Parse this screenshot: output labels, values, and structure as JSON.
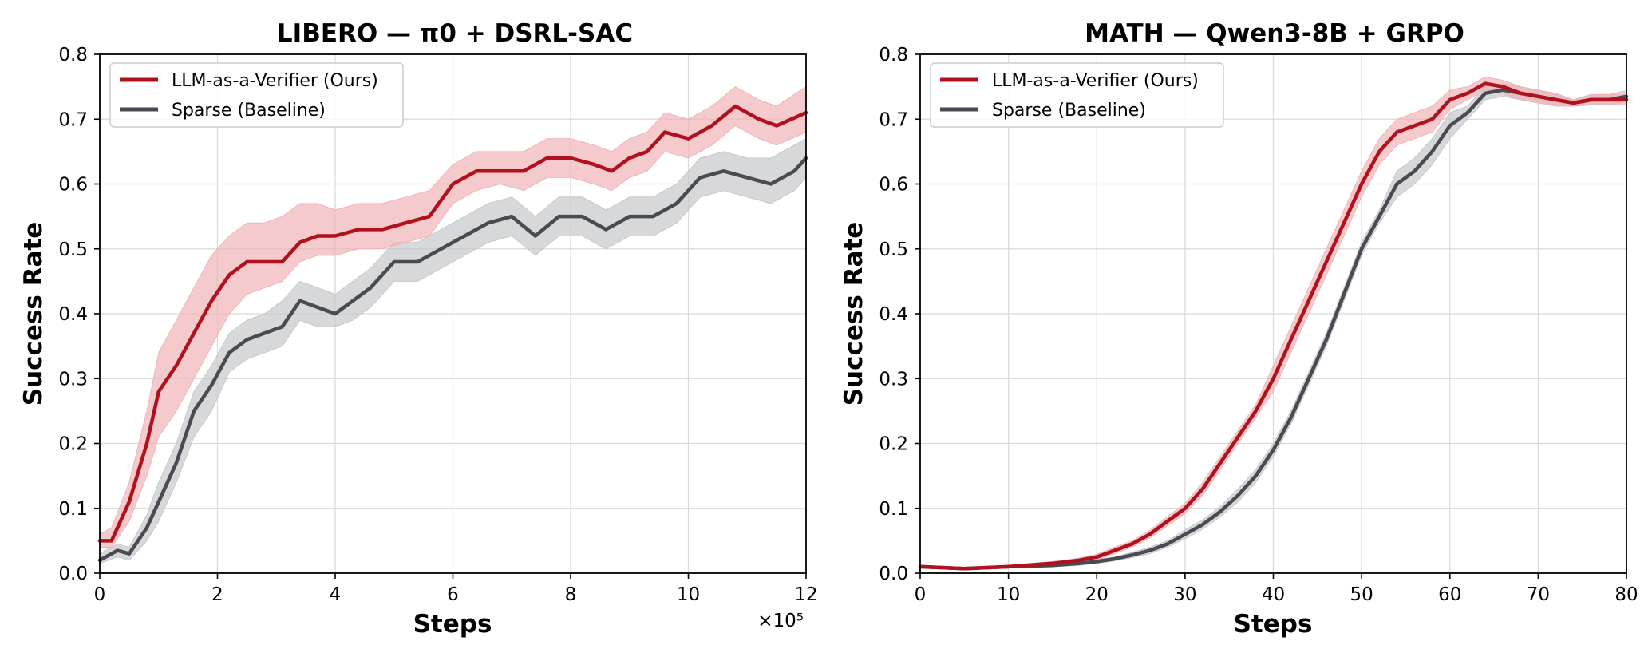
{
  "charts": [
    {
      "title": "LIBERO  —  π0 + DSRL-SAC",
      "xlabel": "Steps",
      "ylabel": "Success Rate",
      "x_multiplier": "×10⁵",
      "xticks": [
        "0",
        "2",
        "4",
        "6",
        "8",
        "10",
        "12"
      ],
      "yticks": [
        "0.0",
        "0.1",
        "0.2",
        "0.3",
        "0.4",
        "0.5",
        "0.6",
        "0.7",
        "0.8"
      ],
      "legend": [
        "LLM-as-a-Verifier (Ours)",
        "Sparse (Baseline)"
      ]
    },
    {
      "title": "MATH  —  Qwen3-8B + GRPO",
      "xlabel": "Steps",
      "ylabel": "Success Rate",
      "xticks": [
        "0",
        "10",
        "20",
        "30",
        "40",
        "50",
        "60",
        "70",
        "80"
      ],
      "yticks": [
        "0.0",
        "0.1",
        "0.2",
        "0.3",
        "0.4",
        "0.5",
        "0.6",
        "0.7",
        "0.8"
      ],
      "legend": [
        "LLM-as-a-Verifier (Ours)",
        "Sparse (Baseline)"
      ]
    }
  ],
  "colors": {
    "ours": "#b2101c",
    "baseline": "#4a4b52",
    "ours_band": "#f0b4b8",
    "baseline_band": "#c6c8c9"
  },
  "chart_data": [
    {
      "type": "line",
      "title": "LIBERO  —  π0 + DSRL-SAC",
      "xlabel": "Steps",
      "ylabel": "Success Rate",
      "x_unit_multiplier": 100000,
      "xlim": [
        0,
        12
      ],
      "ylim": [
        0,
        0.8
      ],
      "grid": true,
      "legend_position": "top-left",
      "series": [
        {
          "name": "LLM-as-a-Verifier (Ours)",
          "x": [
            0,
            0.2,
            0.5,
            0.8,
            1.0,
            1.3,
            1.6,
            1.9,
            2.2,
            2.5,
            2.8,
            3.1,
            3.4,
            3.7,
            4.0,
            4.4,
            4.8,
            5.2,
            5.6,
            6.0,
            6.4,
            6.8,
            7.2,
            7.6,
            8.0,
            8.4,
            8.7,
            9.0,
            9.3,
            9.6,
            10.0,
            10.4,
            10.8,
            11.2,
            11.5,
            12.0
          ],
          "y": [
            0.05,
            0.05,
            0.11,
            0.2,
            0.28,
            0.32,
            0.37,
            0.42,
            0.46,
            0.48,
            0.48,
            0.48,
            0.51,
            0.52,
            0.52,
            0.53,
            0.53,
            0.54,
            0.55,
            0.6,
            0.62,
            0.62,
            0.62,
            0.64,
            0.64,
            0.63,
            0.62,
            0.64,
            0.65,
            0.68,
            0.67,
            0.69,
            0.72,
            0.7,
            0.69,
            0.71
          ],
          "lower": [
            0.04,
            0.04,
            0.08,
            0.15,
            0.21,
            0.25,
            0.3,
            0.35,
            0.4,
            0.43,
            0.44,
            0.45,
            0.48,
            0.49,
            0.49,
            0.5,
            0.5,
            0.51,
            0.52,
            0.57,
            0.59,
            0.6,
            0.59,
            0.61,
            0.61,
            0.6,
            0.59,
            0.61,
            0.62,
            0.65,
            0.64,
            0.66,
            0.69,
            0.67,
            0.66,
            0.68
          ],
          "upper": [
            0.06,
            0.07,
            0.14,
            0.25,
            0.34,
            0.39,
            0.44,
            0.49,
            0.52,
            0.54,
            0.54,
            0.55,
            0.57,
            0.57,
            0.56,
            0.57,
            0.57,
            0.58,
            0.59,
            0.63,
            0.65,
            0.65,
            0.65,
            0.67,
            0.67,
            0.66,
            0.65,
            0.67,
            0.68,
            0.71,
            0.7,
            0.72,
            0.75,
            0.73,
            0.72,
            0.75
          ]
        },
        {
          "name": "Sparse (Baseline)",
          "x": [
            0,
            0.3,
            0.5,
            0.8,
            1.0,
            1.3,
            1.6,
            1.9,
            2.2,
            2.5,
            2.8,
            3.1,
            3.4,
            3.7,
            4.0,
            4.3,
            4.6,
            5.0,
            5.4,
            5.8,
            6.2,
            6.6,
            7.0,
            7.4,
            7.8,
            8.2,
            8.6,
            9.0,
            9.4,
            9.8,
            10.2,
            10.6,
            11.0,
            11.4,
            11.8,
            12.0
          ],
          "y": [
            0.02,
            0.035,
            0.03,
            0.07,
            0.11,
            0.17,
            0.25,
            0.29,
            0.34,
            0.36,
            0.37,
            0.38,
            0.42,
            0.41,
            0.4,
            0.42,
            0.44,
            0.48,
            0.48,
            0.5,
            0.52,
            0.54,
            0.55,
            0.52,
            0.55,
            0.55,
            0.53,
            0.55,
            0.55,
            0.57,
            0.61,
            0.62,
            0.61,
            0.6,
            0.62,
            0.64
          ],
          "lower": [
            0.015,
            0.025,
            0.02,
            0.05,
            0.08,
            0.14,
            0.21,
            0.25,
            0.31,
            0.33,
            0.34,
            0.35,
            0.39,
            0.38,
            0.38,
            0.39,
            0.41,
            0.45,
            0.45,
            0.47,
            0.49,
            0.51,
            0.52,
            0.49,
            0.52,
            0.52,
            0.5,
            0.52,
            0.52,
            0.54,
            0.58,
            0.59,
            0.58,
            0.57,
            0.59,
            0.61
          ],
          "upper": [
            0.03,
            0.045,
            0.04,
            0.09,
            0.14,
            0.2,
            0.28,
            0.32,
            0.37,
            0.39,
            0.4,
            0.42,
            0.45,
            0.44,
            0.43,
            0.45,
            0.47,
            0.51,
            0.51,
            0.53,
            0.55,
            0.57,
            0.58,
            0.55,
            0.58,
            0.58,
            0.56,
            0.58,
            0.58,
            0.6,
            0.64,
            0.65,
            0.64,
            0.64,
            0.66,
            0.67
          ]
        }
      ]
    },
    {
      "type": "line",
      "title": "MATH  —  Qwen3-8B + GRPO",
      "xlabel": "Steps",
      "ylabel": "Success Rate",
      "xlim": [
        0,
        80
      ],
      "ylim": [
        0,
        0.8
      ],
      "grid": true,
      "legend_position": "top-left",
      "series": [
        {
          "name": "LLM-as-a-Verifier (Ours)",
          "x": [
            0,
            5,
            10,
            15,
            18,
            20,
            22,
            24,
            26,
            28,
            30,
            32,
            34,
            36,
            38,
            40,
            42,
            44,
            46,
            48,
            50,
            52,
            54,
            56,
            58,
            60,
            62,
            64,
            66,
            68,
            70,
            72,
            74,
            76,
            78,
            80
          ],
          "y": [
            0.01,
            0.007,
            0.01,
            0.015,
            0.02,
            0.025,
            0.035,
            0.045,
            0.06,
            0.08,
            0.1,
            0.13,
            0.17,
            0.21,
            0.25,
            0.3,
            0.36,
            0.42,
            0.48,
            0.54,
            0.6,
            0.65,
            0.68,
            0.69,
            0.7,
            0.73,
            0.74,
            0.755,
            0.75,
            0.74,
            0.735,
            0.73,
            0.725,
            0.73,
            0.73,
            0.73
          ],
          "lower": [
            0.008,
            0.005,
            0.008,
            0.012,
            0.017,
            0.021,
            0.03,
            0.04,
            0.054,
            0.073,
            0.092,
            0.12,
            0.16,
            0.2,
            0.24,
            0.28,
            0.34,
            0.4,
            0.46,
            0.52,
            0.58,
            0.63,
            0.66,
            0.67,
            0.68,
            0.715,
            0.73,
            0.745,
            0.74,
            0.73,
            0.725,
            0.72,
            0.72,
            0.722,
            0.722,
            0.722
          ],
          "upper": [
            0.012,
            0.009,
            0.012,
            0.018,
            0.023,
            0.029,
            0.04,
            0.05,
            0.066,
            0.087,
            0.108,
            0.14,
            0.18,
            0.22,
            0.26,
            0.32,
            0.38,
            0.44,
            0.5,
            0.56,
            0.62,
            0.67,
            0.7,
            0.71,
            0.72,
            0.745,
            0.75,
            0.765,
            0.76,
            0.75,
            0.745,
            0.74,
            0.73,
            0.738,
            0.738,
            0.738
          ]
        },
        {
          "name": "Sparse (Baseline)",
          "x": [
            0,
            5,
            10,
            15,
            18,
            20,
            22,
            24,
            26,
            28,
            30,
            32,
            34,
            36,
            38,
            40,
            42,
            44,
            46,
            48,
            50,
            52,
            54,
            56,
            58,
            60,
            62,
            64,
            66,
            68,
            70,
            72,
            74,
            76,
            78,
            80
          ],
          "y": [
            0.01,
            0.007,
            0.01,
            0.012,
            0.015,
            0.018,
            0.022,
            0.028,
            0.035,
            0.045,
            0.06,
            0.075,
            0.095,
            0.12,
            0.15,
            0.19,
            0.24,
            0.3,
            0.36,
            0.43,
            0.5,
            0.55,
            0.6,
            0.62,
            0.65,
            0.69,
            0.71,
            0.74,
            0.745,
            0.74,
            0.735,
            0.73,
            0.725,
            0.73,
            0.73,
            0.735
          ],
          "lower": [
            0.008,
            0.005,
            0.008,
            0.01,
            0.012,
            0.015,
            0.019,
            0.024,
            0.03,
            0.04,
            0.053,
            0.068,
            0.087,
            0.11,
            0.14,
            0.18,
            0.23,
            0.29,
            0.35,
            0.42,
            0.49,
            0.54,
            0.58,
            0.6,
            0.63,
            0.67,
            0.7,
            0.73,
            0.735,
            0.73,
            0.726,
            0.722,
            0.72,
            0.722,
            0.722,
            0.726
          ],
          "upper": [
            0.012,
            0.009,
            0.012,
            0.014,
            0.018,
            0.021,
            0.025,
            0.032,
            0.04,
            0.05,
            0.067,
            0.082,
            0.103,
            0.13,
            0.16,
            0.2,
            0.25,
            0.31,
            0.37,
            0.44,
            0.51,
            0.56,
            0.62,
            0.64,
            0.67,
            0.71,
            0.72,
            0.75,
            0.755,
            0.75,
            0.744,
            0.738,
            0.73,
            0.738,
            0.738,
            0.744
          ]
        }
      ]
    }
  ]
}
